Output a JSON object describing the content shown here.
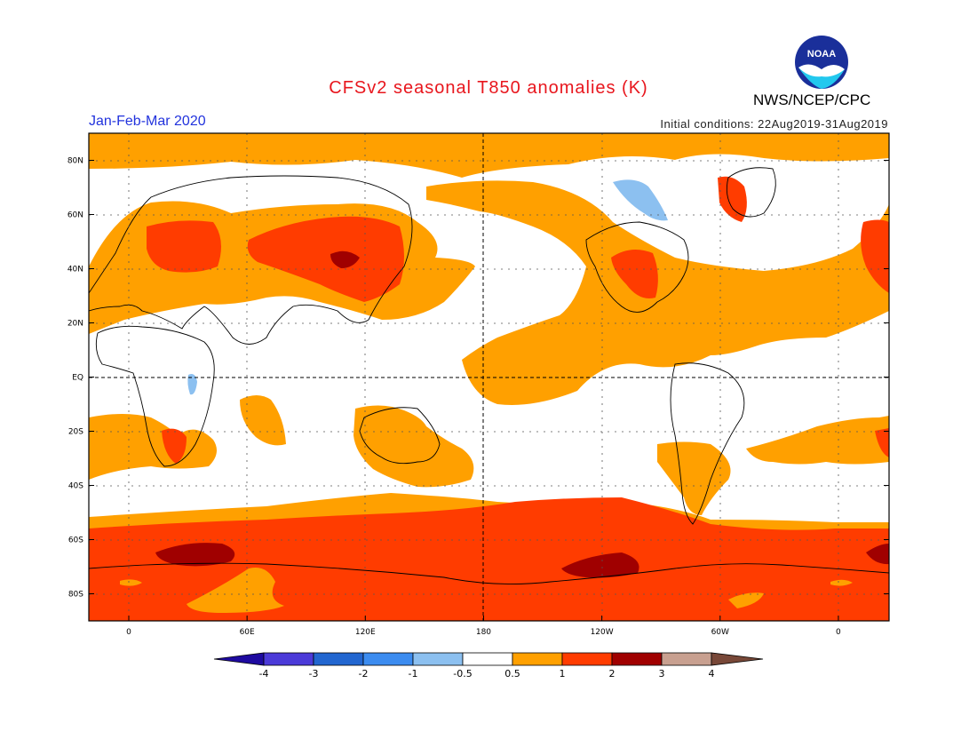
{
  "header": {
    "title": "CFSv2 seasonal T850 anomalies (K)",
    "season": "Jan-Feb-Mar 2020",
    "initial_conditions": "Initial conditions: 22Aug2019-31Aug2019",
    "agency": "NWS/NCEP/CPC",
    "logo_text": "NOAA"
  },
  "axes": {
    "lat_labels": [
      "80N",
      "60N",
      "40N",
      "20N",
      "EQ",
      "20S",
      "40S",
      "60S",
      "80S"
    ],
    "lon_labels": [
      "0",
      "60E",
      "120E",
      "180",
      "120W",
      "60W",
      "0"
    ]
  },
  "colorbar": {
    "ticks": [
      "-4",
      "-3",
      "-2",
      "-1",
      "-0.5",
      "0.5",
      "1",
      "2",
      "3",
      "4"
    ],
    "colors": [
      "#1e0aa0",
      "#4b3ad8",
      "#2266d0",
      "#3c8cf0",
      "#8cc0f0",
      "#ffffff",
      "#ffa000",
      "#ff3c00",
      "#a00000",
      "#c8a090",
      "#784838"
    ]
  },
  "colors": {
    "pos_weak": "#ffa000",
    "pos_mod": "#ff3c00",
    "pos_strong": "#a00000",
    "neg_weak": "#8cc0f0",
    "title": "#e8161d",
    "season": "#2233dd"
  }
}
